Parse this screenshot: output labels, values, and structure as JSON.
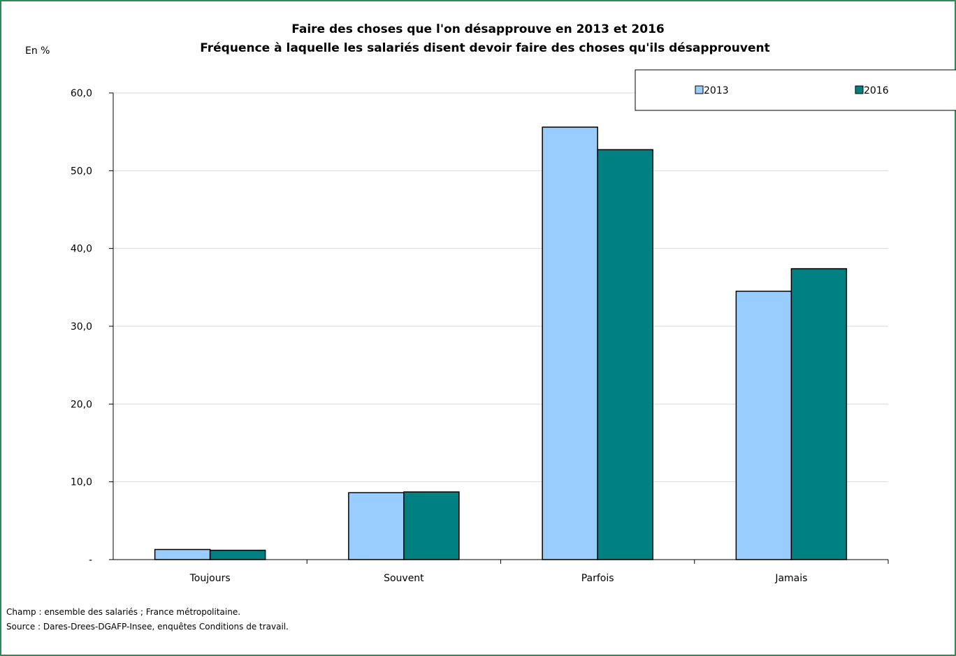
{
  "chart_data": {
    "type": "bar",
    "title": "Faire des choses que l'on désapprouve en 2013 et 2016",
    "subtitle": "Fréquence à laquelle les salariés disent devoir faire des choses qu'ils désapprouvent",
    "ylabel": "En %",
    "xlabel": "",
    "categories": [
      "Toujours",
      "Souvent",
      "Parfois",
      "Jamais"
    ],
    "series": [
      {
        "name": "2013",
        "color": "#99ccff",
        "values": [
          1.3,
          8.6,
          55.6,
          34.5
        ]
      },
      {
        "name": "2016",
        "color": "#008080",
        "values": [
          1.2,
          8.7,
          52.7,
          37.4
        ]
      }
    ],
    "ylim": [
      0,
      60
    ],
    "yticks": [
      {
        "value": 0,
        "label": "-"
      },
      {
        "value": 10,
        "label": "10,0"
      },
      {
        "value": 20,
        "label": "20,0"
      },
      {
        "value": 30,
        "label": "30,0"
      },
      {
        "value": 40,
        "label": "40,0"
      },
      {
        "value": 50,
        "label": "50,0"
      },
      {
        "value": 60,
        "label": "60,0"
      }
    ],
    "grid": true,
    "legend_position": "top-right"
  },
  "footnotes": {
    "champ": "Champ : ensemble des salariés ; France métropolitaine.",
    "source": "Source : Dares-Drees-DGAFP-Insee, enquêtes Conditions de travail."
  }
}
